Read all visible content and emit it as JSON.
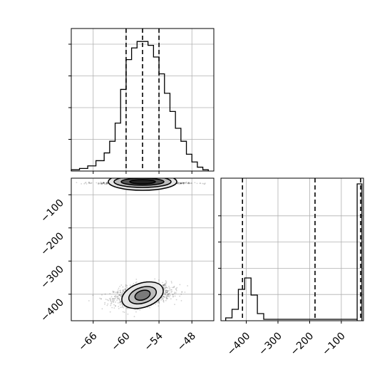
{
  "chart_data": [
    {
      "panel": "top-left",
      "type": "histogram",
      "x_range": [
        -70,
        -44
      ],
      "y_range": [
        0,
        1.1
      ],
      "bin_edges": [
        -70,
        -68.5,
        -67,
        -65.5,
        -64,
        -63,
        -62,
        -61,
        -60,
        -59,
        -58,
        -57,
        -56,
        -55,
        -54,
        -53,
        -52,
        -51,
        -50,
        -49,
        -48,
        -47,
        -46,
        -45
      ],
      "counts": [
        0.01,
        0.02,
        0.04,
        0.08,
        0.14,
        0.23,
        0.37,
        0.63,
        0.86,
        0.95,
        1.0,
        1.0,
        0.97,
        0.88,
        0.75,
        0.6,
        0.46,
        0.33,
        0.23,
        0.13,
        0.07,
        0.03,
        0.01
      ],
      "quantile_lines_x": [
        -60,
        -57,
        -54
      ],
      "x_ticks": [
        -66,
        -60,
        -54,
        -48
      ],
      "grid": true
    },
    {
      "panel": "bottom-left",
      "type": "scatter-density",
      "x_range": [
        -70,
        -44
      ],
      "y_range": [
        -480,
        -50
      ],
      "x_ticks": [
        -66,
        -60,
        -54,
        -48
      ],
      "x_tick_labels": [
        "−66",
        "−60",
        "−54",
        "−48"
      ],
      "y_ticks": [
        -100,
        -200,
        -300,
        -400
      ],
      "y_tick_labels": [
        "−100",
        "−200",
        "−300",
        "−400"
      ],
      "clusters": [
        {
          "center": [
            -57,
            -403
          ],
          "spread": [
            2.6,
            17
          ],
          "tilt": 0.3
        },
        {
          "center": [
            -57,
            -65
          ],
          "spread": [
            4.0,
            1.5
          ],
          "tilt": 0
        }
      ],
      "grid": true
    },
    {
      "panel": "bottom-right",
      "type": "histogram",
      "x_range": [
        -480,
        -30
      ],
      "y_range": [
        0,
        1.0
      ],
      "bin_edges": [
        -465,
        -445,
        -425,
        -405,
        -385,
        -365,
        -345,
        -50,
        -35
      ],
      "counts": [
        0.02,
        0.08,
        0.22,
        0.3,
        0.18,
        0.05,
        0.01,
        0.96
      ],
      "quantile_lines_x": [
        -412,
        -183,
        -39
      ],
      "x_ticks": [
        -400,
        -300,
        -200,
        -100
      ],
      "x_tick_labels": [
        "−400",
        "−300",
        "−200",
        "−100"
      ],
      "grid": true
    }
  ]
}
